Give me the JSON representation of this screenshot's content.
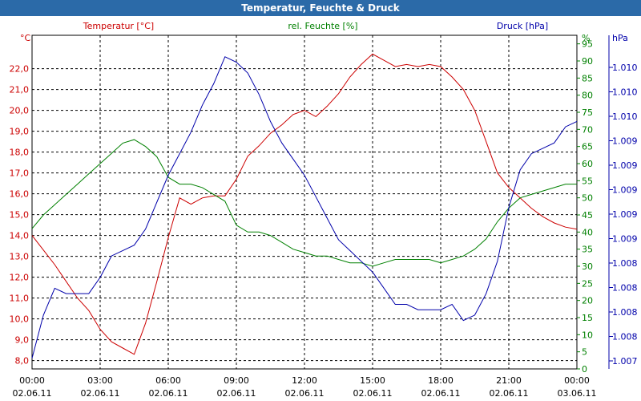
{
  "window": {
    "title": "Temperatur, Feuchte & Druck"
  },
  "chart_data": {
    "type": "line",
    "title": "Temperatur, Feuchte & Druck",
    "x_ticks": [
      {
        "time": "00:00",
        "date": "02.06.11"
      },
      {
        "time": "03:00",
        "date": "02.06.11"
      },
      {
        "time": "06:00",
        "date": "02.06.11"
      },
      {
        "time": "09:00",
        "date": "02.06.11"
      },
      {
        "time": "12:00",
        "date": "02.06.11"
      },
      {
        "time": "15:00",
        "date": "02.06.11"
      },
      {
        "time": "18:00",
        "date": "02.06.11"
      },
      {
        "time": "21:00",
        "date": "02.06.11"
      },
      {
        "time": "00:00",
        "date": "03.06.11"
      }
    ],
    "xlim_hours": [
      0,
      24
    ],
    "axes": {
      "temp": {
        "unit": "°C",
        "ylim": [
          7.6,
          23.6
        ],
        "ticks": [
          "8,0",
          "9,0",
          "10,0",
          "11,0",
          "12,0",
          "13,0",
          "14,0",
          "15,0",
          "16,0",
          "17,0",
          "18,0",
          "19,0",
          "20,0",
          "21,0",
          "22,0"
        ],
        "color": "#cc0000"
      },
      "hum": {
        "unit": "%",
        "ylim": [
          0,
          97.5
        ],
        "ticks": [
          "0",
          "5",
          "10",
          "15",
          "20",
          "25",
          "30",
          "35",
          "40",
          "45",
          "50",
          "55",
          "60",
          "65",
          "70",
          "75",
          "80",
          "85",
          "90",
          "95"
        ],
        "color": "#008000"
      },
      "press": {
        "unit": "hPa",
        "ylim": [
          1007.0,
          1010.1
        ],
        "ticks": [
          "1.007",
          "1.008",
          "1.008",
          "1.008",
          "1.008",
          "1.009",
          "1.009",
          "1.009",
          "1.009",
          "1.009",
          "1.010",
          "1.010",
          "1.010"
        ],
        "color": "#0000aa"
      }
    },
    "series": [
      {
        "name": "Temperatur [°C]",
        "axis": "temp",
        "color": "#cc0000",
        "x": [
          0,
          0.5,
          1,
          1.5,
          2,
          2.5,
          3,
          3.5,
          4,
          4.5,
          5,
          5.5,
          6,
          6.5,
          7,
          7.5,
          8,
          8.5,
          9,
          9.5,
          10,
          10.5,
          11,
          11.5,
          12,
          12.5,
          13,
          13.5,
          14,
          14.5,
          15,
          15.5,
          16,
          16.5,
          17,
          17.5,
          18,
          18.5,
          19,
          19.5,
          20,
          20.5,
          21,
          21.5,
          22,
          22.5,
          23,
          23.5,
          24
        ],
        "values": [
          14.0,
          13.3,
          12.6,
          11.8,
          11.0,
          10.4,
          9.5,
          8.9,
          8.6,
          8.3,
          9.8,
          11.8,
          13.9,
          15.8,
          15.5,
          15.8,
          15.9,
          15.9,
          16.7,
          17.8,
          18.3,
          18.9,
          19.3,
          19.8,
          20.0,
          19.7,
          20.2,
          20.8,
          21.6,
          22.2,
          22.7,
          22.4,
          22.1,
          22.2,
          22.1,
          22.2,
          22.1,
          21.6,
          21.0,
          20.0,
          18.5,
          17.0,
          16.3,
          15.8,
          15.3,
          14.9,
          14.6,
          14.4,
          14.3
        ]
      },
      {
        "name": "rel. Feuchte [%]",
        "axis": "hum",
        "color": "#008000",
        "x": [
          0,
          0.5,
          1,
          1.5,
          2,
          2.5,
          3,
          3.5,
          4,
          4.5,
          5,
          5.5,
          6,
          6.5,
          7,
          7.5,
          8,
          8.5,
          9,
          9.5,
          10,
          10.5,
          11,
          11.5,
          12,
          12.5,
          13,
          13.5,
          14,
          14.5,
          15,
          15.5,
          16,
          16.5,
          17,
          17.5,
          18,
          18.5,
          19,
          19.5,
          20,
          20.5,
          21,
          21.5,
          22,
          22.5,
          23,
          23.5,
          24
        ],
        "values": [
          41,
          45,
          48,
          51,
          54,
          57,
          60,
          63,
          66,
          67,
          65,
          62,
          56,
          54,
          54,
          53,
          51,
          49,
          42,
          40,
          40,
          39,
          37,
          35,
          34,
          33,
          33,
          32,
          31,
          31,
          30,
          31,
          32,
          32,
          32,
          32,
          31,
          32,
          33,
          35,
          38,
          43,
          47,
          50,
          51,
          52,
          53,
          54,
          54
        ]
      },
      {
        "name": "Druck [hPa]",
        "axis": "press",
        "color": "#0000aa",
        "x": [
          0,
          0.5,
          1,
          1.5,
          2,
          2.5,
          3,
          3.5,
          4,
          4.5,
          5,
          5.5,
          6,
          6.5,
          7,
          7.5,
          8,
          8.5,
          9,
          9.5,
          10,
          10.5,
          11,
          11.5,
          12,
          12.5,
          13,
          13.5,
          14,
          14.5,
          15,
          15.5,
          16,
          16.5,
          17,
          17.5,
          18,
          18.5,
          19,
          19.5,
          20,
          20.5,
          21,
          21.5,
          22,
          22.5,
          23,
          23.5,
          24
        ],
        "values": [
          1007.1,
          1007.5,
          1007.75,
          1007.7,
          1007.7,
          1007.7,
          1007.85,
          1008.05,
          1008.1,
          1008.15,
          1008.3,
          1008.55,
          1008.8,
          1009.0,
          1009.2,
          1009.45,
          1009.65,
          1009.9,
          1009.85,
          1009.75,
          1009.55,
          1009.3,
          1009.1,
          1008.95,
          1008.8,
          1008.6,
          1008.4,
          1008.2,
          1008.1,
          1008.0,
          1007.9,
          1007.75,
          1007.6,
          1007.6,
          1007.55,
          1007.55,
          1007.55,
          1007.6,
          1007.45,
          1007.5,
          1007.7,
          1008.0,
          1008.5,
          1008.85,
          1009.0,
          1009.05,
          1009.1,
          1009.25,
          1009.3
        ]
      }
    ]
  }
}
